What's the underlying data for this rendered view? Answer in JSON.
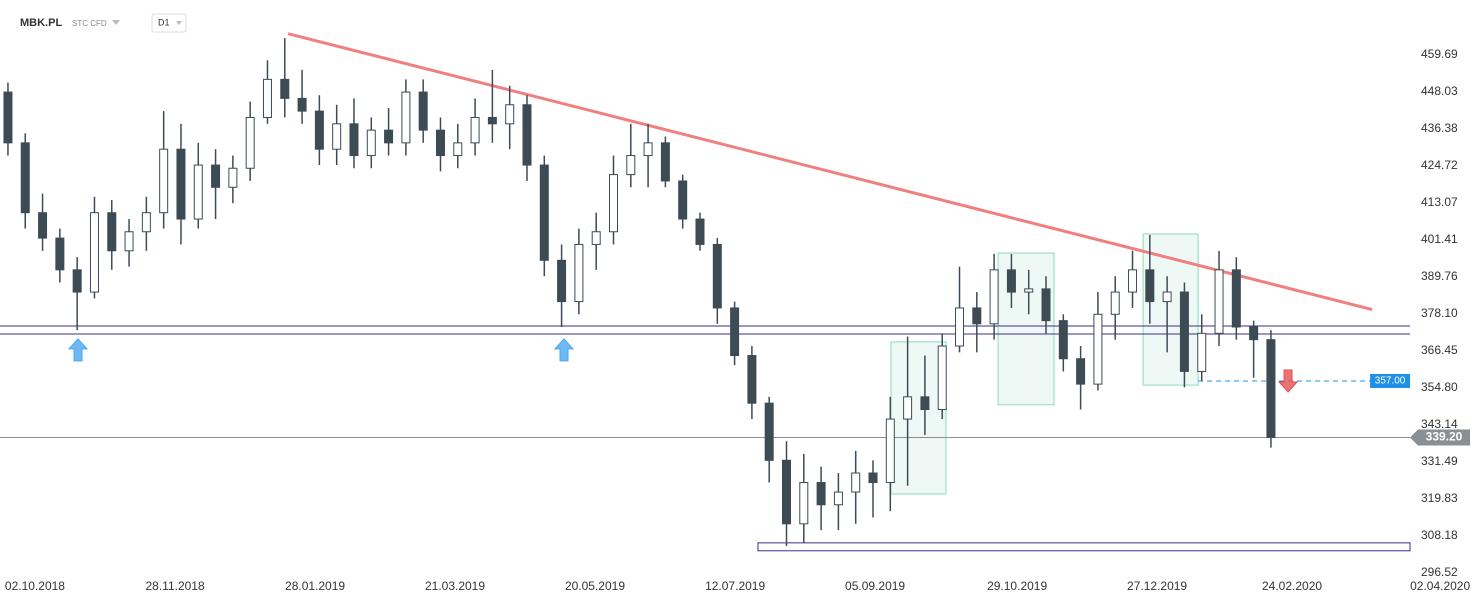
{
  "header": {
    "symbol": "MBK.PL",
    "instrument": "STC CFD",
    "interval": "D1"
  },
  "chart_data": {
    "type": "candlestick",
    "open": [
      448,
      432,
      410,
      402,
      392,
      385,
      410,
      398,
      404,
      410,
      430,
      408,
      425,
      418,
      424,
      440,
      452,
      446,
      442,
      430,
      438,
      428,
      436,
      432,
      448,
      436,
      428,
      432,
      440,
      438,
      444,
      425,
      395,
      382,
      400,
      404,
      422,
      428,
      432,
      420,
      408,
      400,
      380,
      365,
      350,
      332,
      312,
      325,
      318,
      322,
      328,
      325,
      345,
      352,
      348,
      368,
      380,
      375,
      392,
      385,
      386,
      376,
      364,
      356,
      378,
      385,
      392,
      382,
      385,
      360,
      372,
      392,
      374,
      370
    ],
    "high": [
      451,
      435,
      416,
      405,
      396,
      415,
      414,
      408,
      415,
      442,
      438,
      432,
      430,
      428,
      445,
      458,
      465,
      455,
      447,
      444,
      446,
      440,
      443,
      452,
      452,
      440,
      438,
      446,
      455,
      450,
      447,
      428,
      400,
      405,
      410,
      428,
      438,
      438,
      434,
      422,
      410,
      402,
      382,
      368,
      352,
      338,
      334,
      330,
      328,
      335,
      332,
      352,
      371,
      365,
      372,
      393,
      385,
      397,
      397,
      392,
      390,
      378,
      368,
      385,
      390,
      398,
      403,
      390,
      388,
      378,
      398,
      396,
      376,
      373
    ],
    "low": [
      428,
      405,
      398,
      388,
      373,
      383,
      392,
      393,
      398,
      405,
      400,
      405,
      408,
      413,
      420,
      438,
      440,
      438,
      425,
      425,
      424,
      424,
      428,
      428,
      432,
      423,
      424,
      428,
      432,
      430,
      420,
      390,
      374,
      378,
      392,
      400,
      418,
      418,
      418,
      405,
      398,
      375,
      362,
      345,
      325,
      305,
      306,
      310,
      310,
      312,
      314,
      316,
      324,
      340,
      345,
      366,
      366,
      370,
      380,
      378,
      372,
      360,
      348,
      354,
      370,
      380,
      375,
      366,
      355,
      357,
      368,
      370,
      358,
      336
    ],
    "close": [
      432,
      410,
      402,
      392,
      385,
      410,
      398,
      404,
      410,
      430,
      408,
      425,
      418,
      424,
      440,
      452,
      446,
      442,
      430,
      438,
      428,
      436,
      432,
      448,
      436,
      428,
      432,
      440,
      438,
      444,
      425,
      395,
      382,
      400,
      404,
      422,
      428,
      432,
      420,
      408,
      400,
      380,
      365,
      350,
      332,
      312,
      325,
      318,
      322,
      328,
      325,
      345,
      352,
      348,
      368,
      380,
      375,
      392,
      385,
      386,
      376,
      364,
      356,
      378,
      385,
      392,
      382,
      385,
      360,
      372,
      392,
      374,
      370,
      339.2
    ],
    "up_color": "#ffffff",
    "down_color": "#3d4b55",
    "wick_color": "#3d4b55",
    "xlim": [
      -0.46,
      85.2
    ],
    "ylim": [
      294.3,
      477.0
    ],
    "xticks": [
      {
        "value": 1.56,
        "label": "02.10.2018"
      },
      {
        "value": 9.66,
        "label": "28.11.2018"
      },
      {
        "value": 17.75,
        "label": "28.01.2019"
      },
      {
        "value": 25.84,
        "label": "21.03.2019"
      },
      {
        "value": 33.93,
        "label": "20.05.2019"
      },
      {
        "value": 42.03,
        "label": "12.07.2019"
      },
      {
        "value": 50.12,
        "label": "05.09.2019"
      },
      {
        "value": 58.33,
        "label": "29.10.2019"
      },
      {
        "value": 66.42,
        "label": "27.12.2019"
      },
      {
        "value": 74.22,
        "label": "24.02.2020"
      },
      {
        "value": 82.78,
        "label": "02.04.2020"
      }
    ],
    "yticks": [
      459.69,
      448.03,
      436.38,
      424.72,
      413.07,
      401.41,
      389.76,
      {
        "value": 378.1,
        "label": "378.10"
      },
      366.45,
      {
        "value": 354.8,
        "label": "354.80"
      },
      343.14,
      331.49,
      319.83,
      308.18,
      296.52
    ],
    "trendline": {
      "x": [
        16.19,
        78.85
      ],
      "y": [
        466.4,
        379.5
      ],
      "color": "#f08080"
    },
    "support_lines": {
      "values": [
        374.3,
        371.8
      ],
      "color": "#3b2d8f"
    },
    "support_box": {
      "x": [
        43.35,
        81.04
      ],
      "y": [
        306.0,
        303.5
      ],
      "color": "#3b2d8f"
    },
    "zones": [
      {
        "x": [
          51.04,
          54.22
        ],
        "y": [
          369.3,
          321.4
        ]
      },
      {
        "x": [
          57.23,
          60.46
        ],
        "y": [
          397.3,
          349.5
        ]
      },
      {
        "x": [
          65.61,
          68.79
        ],
        "y": [
          403.3,
          355.7
        ]
      }
    ],
    "zone_color": "#8fd9bd",
    "arrows": [
      {
        "x": 4.05,
        "y": 366.8,
        "dir": "up",
        "color": "#4aa8f0"
      },
      {
        "x": 32.14,
        "y": 366.8,
        "dir": "up",
        "color": "#4aa8f0"
      },
      {
        "x": 73.99,
        "y": 357.0,
        "dir": "down",
        "color": "#e55050"
      }
    ],
    "target": {
      "x": [
        68.79,
        78.73
      ],
      "value": 357,
      "label": "357.00",
      "color": "#1e90e8"
    },
    "last_price": {
      "value": 339.2,
      "label": "339.20",
      "color": "#8a8f93"
    }
  }
}
